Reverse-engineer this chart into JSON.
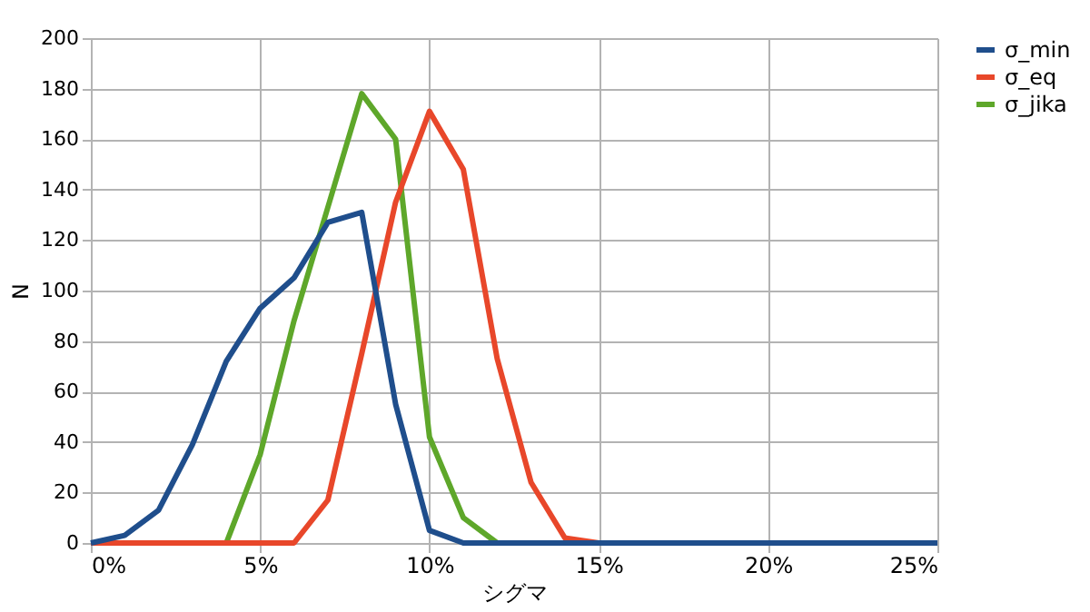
{
  "chart_data": {
    "type": "line",
    "xlabel": "シグマ",
    "ylabel": "N",
    "x": [
      0,
      1,
      2,
      3,
      4,
      5,
      6,
      7,
      8,
      9,
      10,
      11,
      12,
      13,
      14,
      15,
      16,
      17,
      18,
      19,
      20,
      21,
      22,
      23,
      24,
      25
    ],
    "series": [
      {
        "name": "σ_min",
        "color": "#1f4e8c",
        "values": [
          0,
          3,
          13,
          39,
          72,
          93,
          105,
          127,
          131,
          55,
          5,
          0,
          0,
          0,
          0,
          0,
          0,
          0,
          0,
          0,
          0,
          0,
          0,
          0,
          0,
          0
        ]
      },
      {
        "name": "σ_eq",
        "color": "#e8472a",
        "values": [
          0,
          0,
          0,
          0,
          0,
          0,
          0,
          17,
          75,
          135,
          171,
          148,
          73,
          24,
          2,
          0,
          null,
          null,
          null,
          null,
          null,
          null,
          null,
          null,
          null,
          null
        ]
      },
      {
        "name": "σ_jika",
        "color": "#5ea72a",
        "values": [
          null,
          null,
          null,
          null,
          0,
          35,
          88,
          133,
          178,
          160,
          42,
          10,
          0,
          null,
          null,
          null,
          null,
          null,
          null,
          null,
          null,
          null,
          null,
          null,
          null,
          null
        ]
      }
    ],
    "xlim": [
      0,
      25
    ],
    "xticks": [
      {
        "value": 0,
        "label": "0%"
      },
      {
        "value": 5,
        "label": "5%"
      },
      {
        "value": 10,
        "label": "10%"
      },
      {
        "value": 15,
        "label": "15%"
      },
      {
        "value": 20,
        "label": "20%"
      },
      {
        "value": 25,
        "label": "25%"
      }
    ],
    "ylim": [
      0,
      200
    ],
    "yticks": [
      0,
      20,
      40,
      60,
      80,
      100,
      120,
      140,
      160,
      180,
      200
    ],
    "grid": true,
    "legend": "right",
    "marker": "none",
    "line_style": "solid"
  }
}
